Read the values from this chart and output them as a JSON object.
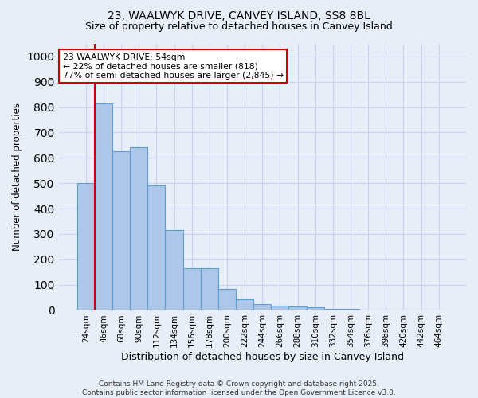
{
  "title1": "23, WAALWYK DRIVE, CANVEY ISLAND, SS8 8BL",
  "title2": "Size of property relative to detached houses in Canvey Island",
  "xlabel": "Distribution of detached houses by size in Canvey Island",
  "ylabel": "Number of detached properties",
  "categories": [
    "24sqm",
    "46sqm",
    "68sqm",
    "90sqm",
    "112sqm",
    "134sqm",
    "156sqm",
    "178sqm",
    "200sqm",
    "222sqm",
    "244sqm",
    "266sqm",
    "288sqm",
    "310sqm",
    "332sqm",
    "354sqm",
    "376sqm",
    "398sqm",
    "420sqm",
    "442sqm",
    "464sqm"
  ],
  "values": [
    500,
    815,
    625,
    643,
    490,
    315,
    165,
    165,
    83,
    43,
    22,
    18,
    15,
    10,
    5,
    5,
    3,
    2,
    2,
    1,
    2
  ],
  "bar_color": "#aec6e8",
  "bar_edge_color": "#5a9fd4",
  "bg_color": "#e8eef8",
  "vline_x_left": 0.5,
  "vline_color": "#cc0000",
  "annotation_text": "23 WAALWYK DRIVE: 54sqm\n← 22% of detached houses are smaller (818)\n77% of semi-detached houses are larger (2,845) →",
  "annotation_box_facecolor": "#ffffff",
  "annotation_box_edgecolor": "#cc0000",
  "ylim": [
    0,
    1050
  ],
  "yticks": [
    0,
    100,
    200,
    300,
    400,
    500,
    600,
    700,
    800,
    900,
    1000
  ],
  "footer": "Contains HM Land Registry data © Crown copyright and database right 2025.\nContains public sector information licensed under the Open Government Licence v3.0.",
  "grid_color": "#c8d4ee"
}
